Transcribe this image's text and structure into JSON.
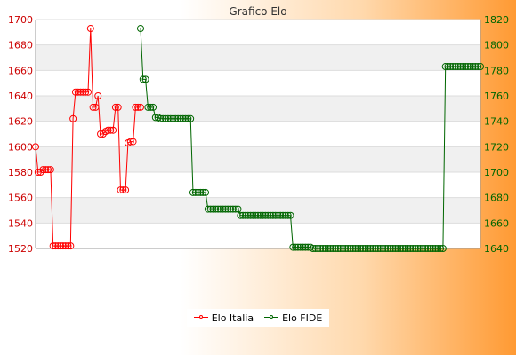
{
  "chart_data": {
    "type": "line",
    "title": "Grafico Elo",
    "colors": {
      "italia": "#ff0000",
      "fide": "#006600",
      "left_axis": "#cc0000",
      "right_axis": "#006600"
    },
    "left_axis": {
      "ylim": [
        1520,
        1700
      ],
      "ticks": [
        "1520",
        "1540",
        "1560",
        "1580",
        "1600",
        "1620",
        "1640",
        "1660",
        "1680",
        "1700"
      ]
    },
    "right_axis": {
      "ylim": [
        1640,
        1820
      ],
      "ticks": [
        "1640",
        "1660",
        "1680",
        "1700",
        "1720",
        "1740",
        "1760",
        "1780",
        "1800",
        "1820"
      ]
    },
    "grid": true,
    "legend_position": "bottom",
    "series": [
      {
        "name": "Elo Italia",
        "axis": "left",
        "values": [
          1600,
          1580,
          1580,
          1582,
          1582,
          1582,
          1582,
          1522,
          1522,
          1522,
          1522,
          1522,
          1522,
          1522,
          1522,
          1622,
          1643,
          1643,
          1643,
          1643,
          1643,
          1643,
          1693,
          1631,
          1631,
          1640,
          1610,
          1610,
          1612,
          1613,
          1613,
          1613,
          1631,
          1631,
          1566,
          1566,
          1566,
          1603,
          1604,
          1604,
          1631,
          1631,
          1631
        ]
      },
      {
        "name": "Elo FIDE",
        "axis": "right",
        "values": [
          null,
          null,
          null,
          null,
          null,
          null,
          null,
          null,
          null,
          null,
          null,
          null,
          null,
          null,
          null,
          null,
          null,
          null,
          null,
          null,
          null,
          null,
          null,
          null,
          null,
          null,
          null,
          null,
          null,
          null,
          null,
          null,
          null,
          null,
          null,
          null,
          null,
          null,
          null,
          null,
          null,
          null,
          1813,
          1773,
          1773,
          1751,
          1751,
          1751,
          1743,
          1743,
          1742,
          1742,
          1742,
          1742,
          1742,
          1742,
          1742,
          1742,
          1742,
          1742,
          1742,
          1742,
          1742,
          1684,
          1684,
          1684,
          1684,
          1684,
          1684,
          1671,
          1671,
          1671,
          1671,
          1671,
          1671,
          1671,
          1671,
          1671,
          1671,
          1671,
          1671,
          1671,
          1666,
          1666,
          1666,
          1666,
          1666,
          1666,
          1666,
          1666,
          1666,
          1666,
          1666,
          1666,
          1666,
          1666,
          1666,
          1666,
          1666,
          1666,
          1666,
          1666,
          1666,
          1641,
          1641,
          1641,
          1641,
          1641,
          1641,
          1641,
          1641,
          1640,
          1640,
          1640,
          1640,
          1640,
          1640,
          1640,
          1640,
          1640,
          1640,
          1640,
          1640,
          1640,
          1640,
          1640,
          1640,
          1640,
          1640,
          1640,
          1640,
          1640,
          1640,
          1640,
          1640,
          1640,
          1640,
          1640,
          1640,
          1640,
          1640,
          1640,
          1640,
          1640,
          1640,
          1640,
          1640,
          1640,
          1640,
          1640,
          1640,
          1640,
          1640,
          1640,
          1640,
          1640,
          1640,
          1640,
          1640,
          1640,
          1640,
          1640,
          1640,
          1640,
          1783,
          1783,
          1783,
          1783,
          1783,
          1783,
          1783,
          1783,
          1783,
          1783,
          1783,
          1783,
          1783,
          1783,
          1783
        ]
      }
    ]
  }
}
